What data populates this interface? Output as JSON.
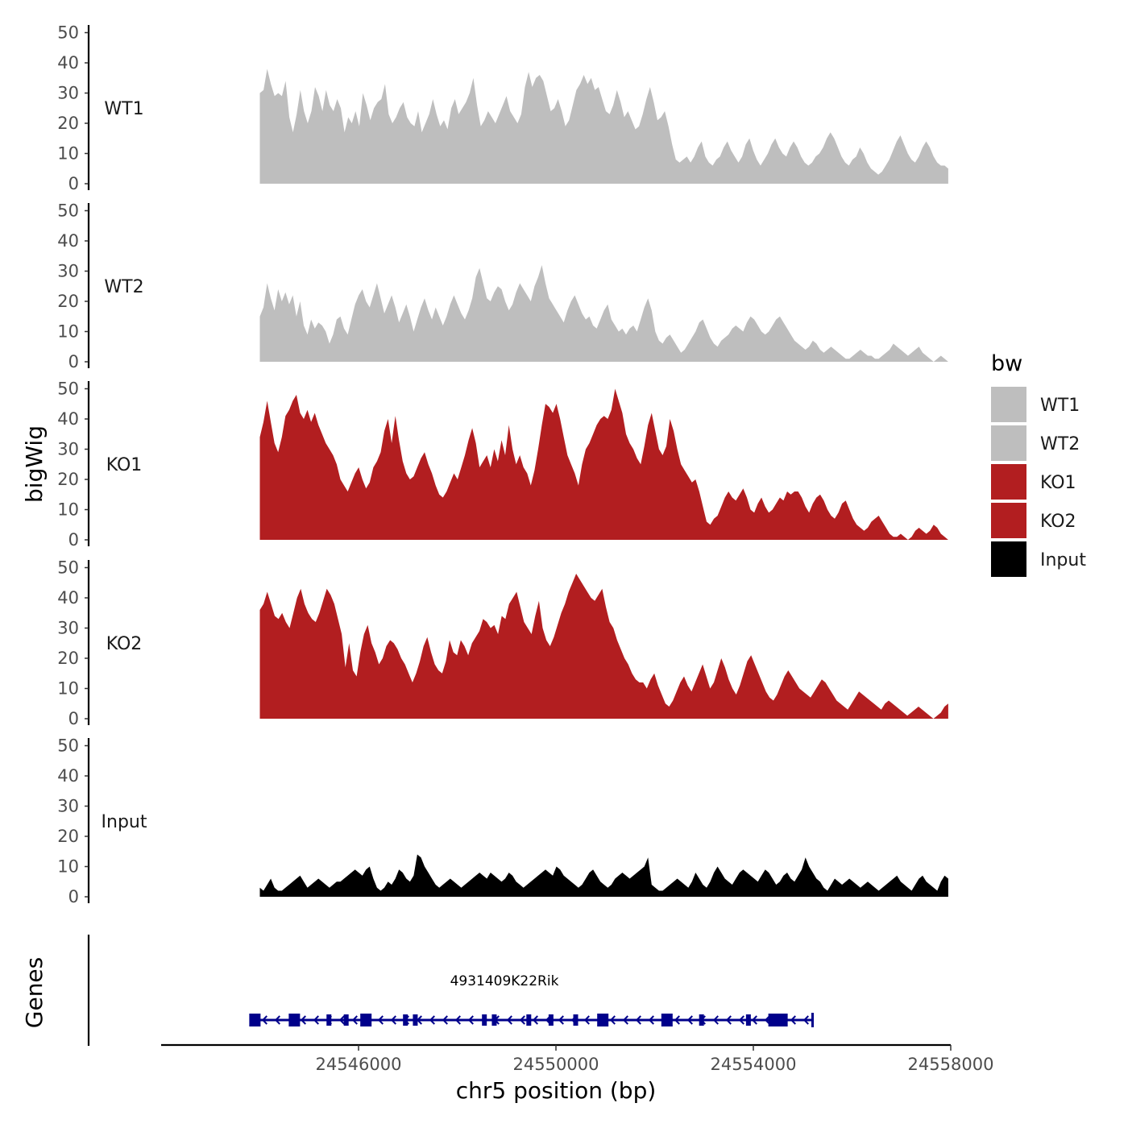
{
  "chart_data": {
    "type": "area",
    "ylabel": "bigWig",
    "xlabel": "chr5 position (bp)",
    "xlim": [
      24542000,
      24558000
    ],
    "x_ticks": [
      24546000,
      24550000,
      24554000,
      24558000
    ],
    "x_tick_labels": [
      "24546000",
      "24550000",
      "24554000",
      "24558000"
    ],
    "ylim": [
      0,
      52
    ],
    "y_ticks": [
      0,
      10,
      20,
      30,
      40,
      50
    ],
    "y_tick_labels": [
      "0",
      "10",
      "20",
      "30",
      "40",
      "50"
    ],
    "region": [
      24544000,
      24557950
    ],
    "legend": {
      "title": "bw",
      "entries": [
        {
          "label": "WT1",
          "color": "#bebebe"
        },
        {
          "label": "WT2",
          "color": "#bebebe"
        },
        {
          "label": "KO1",
          "color": "#b21e20"
        },
        {
          "label": "KO2",
          "color": "#b21e20"
        },
        {
          "label": "Input",
          "color": "#000000"
        }
      ]
    },
    "series": [
      {
        "name": "WT1",
        "color": "#bebebe",
        "values": [
          30,
          31,
          38,
          33,
          29,
          30,
          29,
          34,
          22,
          17,
          23,
          31,
          24,
          20,
          24,
          32,
          29,
          24,
          31,
          26,
          24,
          28,
          25,
          17,
          22,
          20,
          24,
          19,
          30,
          26,
          21,
          25,
          27,
          28,
          33,
          23,
          20,
          22,
          25,
          27,
          22,
          20,
          19,
          24,
          17,
          20,
          23,
          28,
          23,
          19,
          21,
          18,
          25,
          28,
          23,
          25,
          27,
          30,
          35,
          26,
          19,
          21,
          24,
          22,
          20,
          23,
          26,
          29,
          24,
          22,
          20,
          23,
          32,
          37,
          32,
          35,
          36,
          34,
          29,
          24,
          25,
          28,
          24,
          19,
          21,
          26,
          31,
          33,
          36,
          33,
          35,
          31,
          32,
          28,
          24,
          23,
          26,
          31,
          27,
          22,
          24,
          21,
          18,
          19,
          23,
          28,
          32,
          27,
          21,
          22,
          24,
          19,
          13,
          8,
          7,
          8,
          9,
          7,
          9,
          12,
          14,
          9,
          7,
          6,
          8,
          9,
          12,
          14,
          11,
          9,
          7,
          9,
          13,
          15,
          11,
          8,
          6,
          8,
          10,
          13,
          15,
          12,
          10,
          9,
          12,
          14,
          12,
          9,
          7,
          6,
          7,
          9,
          10,
          12,
          15,
          17,
          15,
          12,
          9,
          7,
          6,
          8,
          9,
          12,
          10,
          7,
          5,
          4,
          3,
          4,
          6,
          8,
          11,
          14,
          16,
          13,
          10,
          8,
          7,
          9,
          12,
          14,
          12,
          9,
          7,
          6,
          6,
          5
        ]
      },
      {
        "name": "WT2",
        "color": "#bebebe",
        "values": [
          15,
          18,
          26,
          21,
          17,
          24,
          20,
          23,
          19,
          22,
          15,
          20,
          12,
          9,
          14,
          11,
          13,
          12,
          10,
          6,
          9,
          14,
          15,
          11,
          9,
          14,
          19,
          22,
          24,
          20,
          18,
          22,
          26,
          21,
          16,
          19,
          22,
          18,
          13,
          16,
          19,
          15,
          10,
          14,
          18,
          21,
          17,
          14,
          18,
          15,
          12,
          15,
          19,
          22,
          19,
          16,
          14,
          17,
          21,
          28,
          31,
          26,
          21,
          20,
          23,
          25,
          24,
          20,
          17,
          19,
          23,
          26,
          24,
          22,
          20,
          25,
          28,
          32,
          26,
          21,
          19,
          17,
          15,
          13,
          17,
          20,
          22,
          19,
          16,
          14,
          15,
          12,
          11,
          14,
          17,
          19,
          14,
          12,
          10,
          11,
          9,
          11,
          12,
          10,
          14,
          18,
          21,
          17,
          10,
          7,
          6,
          8,
          9,
          7,
          5,
          3,
          4,
          6,
          8,
          10,
          13,
          14,
          11,
          8,
          6,
          5,
          7,
          8,
          9,
          11,
          12,
          11,
          10,
          13,
          15,
          14,
          12,
          10,
          9,
          10,
          12,
          14,
          15,
          13,
          11,
          9,
          7,
          6,
          5,
          4,
          5,
          7,
          6,
          4,
          3,
          4,
          5,
          4,
          3,
          2,
          1,
          1,
          2,
          3,
          4,
          3,
          2,
          2,
          1,
          1,
          2,
          3,
          4,
          6,
          5,
          4,
          3,
          2,
          3,
          4,
          5,
          3,
          2,
          1,
          0,
          1,
          2,
          1,
          0
        ]
      },
      {
        "name": "KO1",
        "color": "#b21e20",
        "values": [
          34,
          39,
          46,
          39,
          32,
          29,
          34,
          41,
          43,
          46,
          48,
          42,
          40,
          43,
          39,
          42,
          38,
          35,
          32,
          30,
          28,
          25,
          20,
          18,
          16,
          19,
          22,
          24,
          20,
          17,
          19,
          24,
          26,
          29,
          36,
          40,
          32,
          41,
          33,
          26,
          22,
          20,
          21,
          24,
          27,
          29,
          25,
          22,
          18,
          15,
          14,
          16,
          19,
          22,
          20,
          24,
          28,
          33,
          37,
          32,
          24,
          26,
          28,
          24,
          30,
          26,
          33,
          28,
          38,
          30,
          25,
          28,
          24,
          22,
          18,
          23,
          30,
          38,
          45,
          44,
          42,
          45,
          40,
          34,
          28,
          25,
          22,
          18,
          25,
          30,
          32,
          35,
          38,
          40,
          41,
          40,
          43,
          50,
          46,
          42,
          35,
          32,
          30,
          27,
          25,
          31,
          38,
          42,
          36,
          30,
          28,
          31,
          40,
          36,
          30,
          25,
          23,
          21,
          19,
          20,
          16,
          11,
          6,
          5,
          7,
          8,
          11,
          14,
          16,
          14,
          13,
          15,
          17,
          14,
          10,
          9,
          12,
          14,
          11,
          9,
          10,
          12,
          14,
          13,
          16,
          15,
          16,
          16,
          14,
          11,
          9,
          12,
          14,
          15,
          13,
          10,
          8,
          7,
          9,
          12,
          13,
          10,
          7,
          5,
          4,
          3,
          4,
          6,
          7,
          8,
          6,
          4,
          2,
          1,
          1,
          2,
          1,
          0,
          1,
          3,
          4,
          3,
          2,
          3,
          5,
          4,
          2,
          1,
          0
        ]
      },
      {
        "name": "KO2",
        "color": "#b21e20",
        "values": [
          36,
          38,
          42,
          38,
          34,
          33,
          35,
          32,
          30,
          35,
          40,
          43,
          38,
          35,
          33,
          32,
          35,
          39,
          43,
          41,
          38,
          33,
          28,
          17,
          25,
          16,
          14,
          22,
          28,
          31,
          25,
          22,
          18,
          20,
          24,
          26,
          25,
          23,
          20,
          18,
          15,
          12,
          15,
          19,
          24,
          27,
          22,
          18,
          16,
          15,
          19,
          26,
          22,
          21,
          26,
          24,
          21,
          25,
          27,
          29,
          33,
          32,
          30,
          31,
          28,
          34,
          33,
          38,
          40,
          42,
          37,
          32,
          30,
          28,
          34,
          39,
          30,
          26,
          24,
          27,
          31,
          35,
          38,
          42,
          45,
          48,
          46,
          44,
          42,
          40,
          39,
          41,
          43,
          37,
          32,
          30,
          26,
          23,
          20,
          18,
          15,
          13,
          12,
          12,
          10,
          13,
          15,
          11,
          8,
          5,
          4,
          6,
          9,
          12,
          14,
          11,
          9,
          12,
          15,
          18,
          14,
          10,
          12,
          16,
          20,
          17,
          13,
          10,
          8,
          11,
          15,
          19,
          21,
          18,
          15,
          12,
          9,
          7,
          6,
          8,
          11,
          14,
          16,
          14,
          12,
          10,
          9,
          8,
          7,
          9,
          11,
          13,
          12,
          10,
          8,
          6,
          5,
          4,
          3,
          5,
          7,
          9,
          8,
          7,
          6,
          5,
          4,
          3,
          5,
          6,
          5,
          4,
          3,
          2,
          1,
          2,
          3,
          4,
          3,
          2,
          1,
          0,
          1,
          2,
          4,
          5
        ]
      },
      {
        "name": "Input",
        "color": "#000000",
        "values": [
          3,
          2,
          4,
          6,
          3,
          2,
          2,
          3,
          4,
          5,
          6,
          7,
          5,
          3,
          4,
          5,
          6,
          5,
          4,
          3,
          4,
          5,
          5,
          6,
          7,
          8,
          9,
          8,
          7,
          9,
          10,
          6,
          3,
          2,
          3,
          5,
          4,
          6,
          9,
          8,
          6,
          5,
          7,
          14,
          13,
          10,
          8,
          6,
          4,
          3,
          4,
          5,
          6,
          5,
          4,
          3,
          4,
          5,
          6,
          7,
          8,
          7,
          6,
          8,
          7,
          6,
          5,
          6,
          8,
          7,
          5,
          4,
          3,
          4,
          5,
          6,
          7,
          8,
          9,
          8,
          7,
          10,
          9,
          7,
          6,
          5,
          4,
          3,
          4,
          6,
          8,
          9,
          7,
          5,
          4,
          3,
          4,
          6,
          7,
          8,
          7,
          6,
          7,
          8,
          9,
          10,
          13,
          4,
          3,
          2,
          2,
          3,
          4,
          5,
          6,
          5,
          4,
          3,
          5,
          8,
          6,
          4,
          3,
          5,
          8,
          10,
          8,
          6,
          5,
          4,
          6,
          8,
          9,
          8,
          7,
          6,
          5,
          7,
          9,
          8,
          6,
          4,
          5,
          7,
          8,
          6,
          5,
          7,
          9,
          13,
          10,
          8,
          6,
          5,
          3,
          2,
          4,
          6,
          5,
          4,
          5,
          6,
          5,
          4,
          3,
          4,
          5,
          4,
          3,
          2,
          3,
          4,
          5,
          6,
          7,
          5,
          4,
          3,
          2,
          4,
          6,
          7,
          5,
          4,
          3,
          2,
          5,
          7,
          6
        ]
      }
    ],
    "genes_track": {
      "label": "Genes",
      "gene_name": "4931409K22Rik",
      "start": 24543800,
      "end": 24555200,
      "strand": "-",
      "color": "#00008b",
      "exons": [
        24543900,
        24544700,
        24545400,
        24545750,
        24546150,
        24546950,
        24547150,
        24548550,
        24548750,
        24549450,
        24549900,
        24550400,
        24550950,
        24552250,
        24552950,
        24553900,
        24554500
      ]
    }
  }
}
